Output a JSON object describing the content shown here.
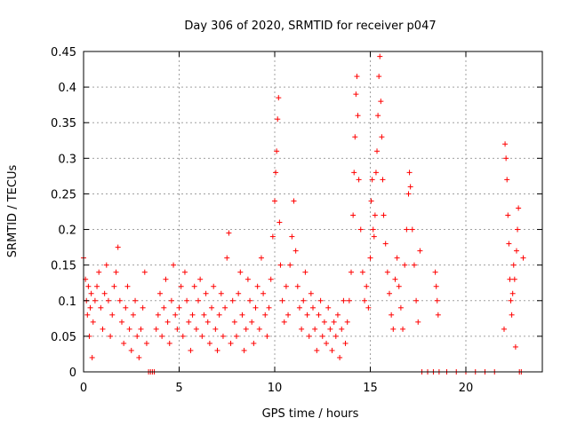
{
  "chart_data": {
    "type": "scatter",
    "title": "Day 306 of 2020, SRMTID for receiver p047",
    "xlabel": "GPS time / hours",
    "ylabel": "SRMTID / TECUs",
    "xlim": [
      0,
      24
    ],
    "ylim": [
      0,
      0.45
    ],
    "xticks": [
      0,
      5,
      10,
      15,
      20
    ],
    "xtick_labels": [
      "0",
      "5",
      "10",
      "15",
      "20"
    ],
    "yticks": [
      0,
      0.05,
      0.1,
      0.15,
      0.2,
      0.25,
      0.3,
      0.35,
      0.4,
      0.45
    ],
    "ytick_labels": [
      "0",
      "0.05",
      "0.1",
      "0.15",
      "0.2",
      "0.25",
      "0.3",
      "0.35",
      "0.4",
      "0.45"
    ],
    "grid": true,
    "marker": "+",
    "marker_color": "#ff0000",
    "series": [
      {
        "name": "SRMTID",
        "points": [
          [
            0.0,
            0.16
          ],
          [
            0.1,
            0.13
          ],
          [
            0.15,
            0.1
          ],
          [
            0.2,
            0.08
          ],
          [
            0.25,
            0.12
          ],
          [
            0.3,
            0.05
          ],
          [
            0.35,
            0.09
          ],
          [
            0.4,
            0.11
          ],
          [
            0.45,
            0.02
          ],
          [
            0.5,
            0.07
          ],
          [
            0.6,
            0.1
          ],
          [
            0.7,
            0.12
          ],
          [
            0.8,
            0.14
          ],
          [
            0.9,
            0.09
          ],
          [
            1.0,
            0.06
          ],
          [
            1.1,
            0.11
          ],
          [
            1.2,
            0.15
          ],
          [
            1.3,
            0.1
          ],
          [
            1.4,
            0.05
          ],
          [
            1.5,
            0.08
          ],
          [
            1.6,
            0.12
          ],
          [
            1.7,
            0.14
          ],
          [
            1.8,
            0.175
          ],
          [
            1.9,
            0.1
          ],
          [
            2.0,
            0.07
          ],
          [
            2.1,
            0.04
          ],
          [
            2.2,
            0.09
          ],
          [
            2.3,
            0.12
          ],
          [
            2.4,
            0.06
          ],
          [
            2.5,
            0.03
          ],
          [
            2.6,
            0.08
          ],
          [
            2.7,
            0.1
          ],
          [
            2.8,
            0.05
          ],
          [
            2.9,
            0.02
          ],
          [
            3.0,
            0.06
          ],
          [
            3.1,
            0.09
          ],
          [
            3.2,
            0.14
          ],
          [
            3.3,
            0.04
          ],
          [
            3.4,
            0.0
          ],
          [
            3.5,
            0.0
          ],
          [
            3.6,
            0.0
          ],
          [
            3.7,
            0.0
          ],
          [
            3.8,
            0.06
          ],
          [
            3.9,
            0.08
          ],
          [
            4.0,
            0.11
          ],
          [
            4.1,
            0.05
          ],
          [
            4.2,
            0.09
          ],
          [
            4.3,
            0.13
          ],
          [
            4.4,
            0.07
          ],
          [
            4.5,
            0.04
          ],
          [
            4.6,
            0.1
          ],
          [
            4.7,
            0.15
          ],
          [
            4.8,
            0.08
          ],
          [
            4.9,
            0.06
          ],
          [
            5.0,
            0.09
          ],
          [
            5.1,
            0.12
          ],
          [
            5.2,
            0.05
          ],
          [
            5.3,
            0.14
          ],
          [
            5.4,
            0.1
          ],
          [
            5.5,
            0.07
          ],
          [
            5.6,
            0.03
          ],
          [
            5.7,
            0.08
          ],
          [
            5.8,
            0.12
          ],
          [
            5.9,
            0.06
          ],
          [
            6.0,
            0.1
          ],
          [
            6.1,
            0.13
          ],
          [
            6.2,
            0.05
          ],
          [
            6.3,
            0.08
          ],
          [
            6.4,
            0.11
          ],
          [
            6.5,
            0.07
          ],
          [
            6.6,
            0.04
          ],
          [
            6.7,
            0.09
          ],
          [
            6.8,
            0.12
          ],
          [
            6.9,
            0.06
          ],
          [
            7.0,
            0.03
          ],
          [
            7.1,
            0.08
          ],
          [
            7.2,
            0.11
          ],
          [
            7.3,
            0.05
          ],
          [
            7.4,
            0.09
          ],
          [
            7.5,
            0.16
          ],
          [
            7.6,
            0.195
          ],
          [
            7.7,
            0.04
          ],
          [
            7.8,
            0.1
          ],
          [
            7.9,
            0.07
          ],
          [
            8.0,
            0.05
          ],
          [
            8.1,
            0.11
          ],
          [
            8.2,
            0.14
          ],
          [
            8.3,
            0.08
          ],
          [
            8.4,
            0.03
          ],
          [
            8.5,
            0.06
          ],
          [
            8.6,
            0.13
          ],
          [
            8.7,
            0.1
          ],
          [
            8.8,
            0.07
          ],
          [
            8.9,
            0.04
          ],
          [
            9.0,
            0.09
          ],
          [
            9.1,
            0.12
          ],
          [
            9.2,
            0.06
          ],
          [
            9.3,
            0.16
          ],
          [
            9.4,
            0.11
          ],
          [
            9.5,
            0.08
          ],
          [
            9.6,
            0.05
          ],
          [
            9.7,
            0.09
          ],
          [
            9.8,
            0.13
          ],
          [
            9.9,
            0.19
          ],
          [
            10.0,
            0.24
          ],
          [
            10.05,
            0.28
          ],
          [
            10.1,
            0.31
          ],
          [
            10.15,
            0.355
          ],
          [
            10.2,
            0.385
          ],
          [
            10.25,
            0.21
          ],
          [
            10.3,
            0.15
          ],
          [
            10.4,
            0.1
          ],
          [
            10.5,
            0.07
          ],
          [
            10.6,
            0.12
          ],
          [
            10.7,
            0.08
          ],
          [
            10.8,
            0.15
          ],
          [
            10.9,
            0.19
          ],
          [
            11.0,
            0.24
          ],
          [
            11.1,
            0.17
          ],
          [
            11.2,
            0.12
          ],
          [
            11.3,
            0.09
          ],
          [
            11.4,
            0.06
          ],
          [
            11.5,
            0.1
          ],
          [
            11.6,
            0.14
          ],
          [
            11.7,
            0.08
          ],
          [
            11.8,
            0.05
          ],
          [
            11.9,
            0.11
          ],
          [
            12.0,
            0.09
          ],
          [
            12.1,
            0.06
          ],
          [
            12.2,
            0.03
          ],
          [
            12.3,
            0.08
          ],
          [
            12.4,
            0.1
          ],
          [
            12.5,
            0.05
          ],
          [
            12.6,
            0.07
          ],
          [
            12.7,
            0.04
          ],
          [
            12.8,
            0.09
          ],
          [
            12.9,
            0.06
          ],
          [
            13.0,
            0.03
          ],
          [
            13.1,
            0.07
          ],
          [
            13.2,
            0.05
          ],
          [
            13.3,
            0.08
          ],
          [
            13.4,
            0.02
          ],
          [
            13.5,
            0.06
          ],
          [
            13.6,
            0.1
          ],
          [
            13.7,
            0.04
          ],
          [
            13.8,
            0.07
          ],
          [
            13.9,
            0.1
          ],
          [
            14.0,
            0.14
          ],
          [
            14.1,
            0.22
          ],
          [
            14.15,
            0.28
          ],
          [
            14.2,
            0.33
          ],
          [
            14.25,
            0.39
          ],
          [
            14.3,
            0.415
          ],
          [
            14.35,
            0.36
          ],
          [
            14.4,
            0.27
          ],
          [
            14.5,
            0.2
          ],
          [
            14.6,
            0.14
          ],
          [
            14.7,
            0.1
          ],
          [
            14.8,
            0.12
          ],
          [
            14.9,
            0.09
          ],
          [
            15.0,
            0.16
          ],
          [
            15.05,
            0.24
          ],
          [
            15.1,
            0.27
          ],
          [
            15.15,
            0.2
          ],
          [
            15.2,
            0.19
          ],
          [
            15.25,
            0.22
          ],
          [
            15.3,
            0.28
          ],
          [
            15.35,
            0.31
          ],
          [
            15.4,
            0.36
          ],
          [
            15.45,
            0.415
          ],
          [
            15.5,
            0.443
          ],
          [
            15.55,
            0.38
          ],
          [
            15.6,
            0.33
          ],
          [
            15.65,
            0.27
          ],
          [
            15.7,
            0.22
          ],
          [
            15.8,
            0.18
          ],
          [
            15.9,
            0.14
          ],
          [
            16.0,
            0.11
          ],
          [
            16.1,
            0.08
          ],
          [
            16.2,
            0.06
          ],
          [
            16.3,
            0.13
          ],
          [
            16.4,
            0.16
          ],
          [
            16.5,
            0.12
          ],
          [
            16.6,
            0.09
          ],
          [
            16.7,
            0.06
          ],
          [
            16.8,
            0.15
          ],
          [
            16.9,
            0.2
          ],
          [
            17.0,
            0.25
          ],
          [
            17.05,
            0.28
          ],
          [
            17.1,
            0.26
          ],
          [
            17.2,
            0.2
          ],
          [
            17.3,
            0.15
          ],
          [
            17.4,
            0.1
          ],
          [
            17.5,
            0.07
          ],
          [
            17.6,
            0.17
          ],
          [
            17.7,
            0.0
          ],
          [
            18.0,
            0.0
          ],
          [
            18.3,
            0.0
          ],
          [
            18.4,
            0.14
          ],
          [
            18.45,
            0.12
          ],
          [
            18.5,
            0.1
          ],
          [
            18.55,
            0.08
          ],
          [
            18.6,
            0.0
          ],
          [
            19.0,
            0.0
          ],
          [
            19.5,
            0.0
          ],
          [
            20.0,
            0.0
          ],
          [
            20.5,
            0.0
          ],
          [
            21.0,
            0.0
          ],
          [
            21.5,
            0.0
          ],
          [
            22.0,
            0.06
          ],
          [
            22.05,
            0.32
          ],
          [
            22.1,
            0.3
          ],
          [
            22.15,
            0.27
          ],
          [
            22.2,
            0.22
          ],
          [
            22.25,
            0.18
          ],
          [
            22.3,
            0.13
          ],
          [
            22.35,
            0.1
          ],
          [
            22.4,
            0.08
          ],
          [
            22.45,
            0.11
          ],
          [
            22.5,
            0.15
          ],
          [
            22.55,
            0.13
          ],
          [
            22.6,
            0.035
          ],
          [
            22.65,
            0.17
          ],
          [
            22.7,
            0.2
          ],
          [
            22.75,
            0.23
          ],
          [
            22.8,
            0.0
          ],
          [
            22.9,
            0.0
          ],
          [
            23.0,
            0.16
          ]
        ]
      }
    ]
  }
}
